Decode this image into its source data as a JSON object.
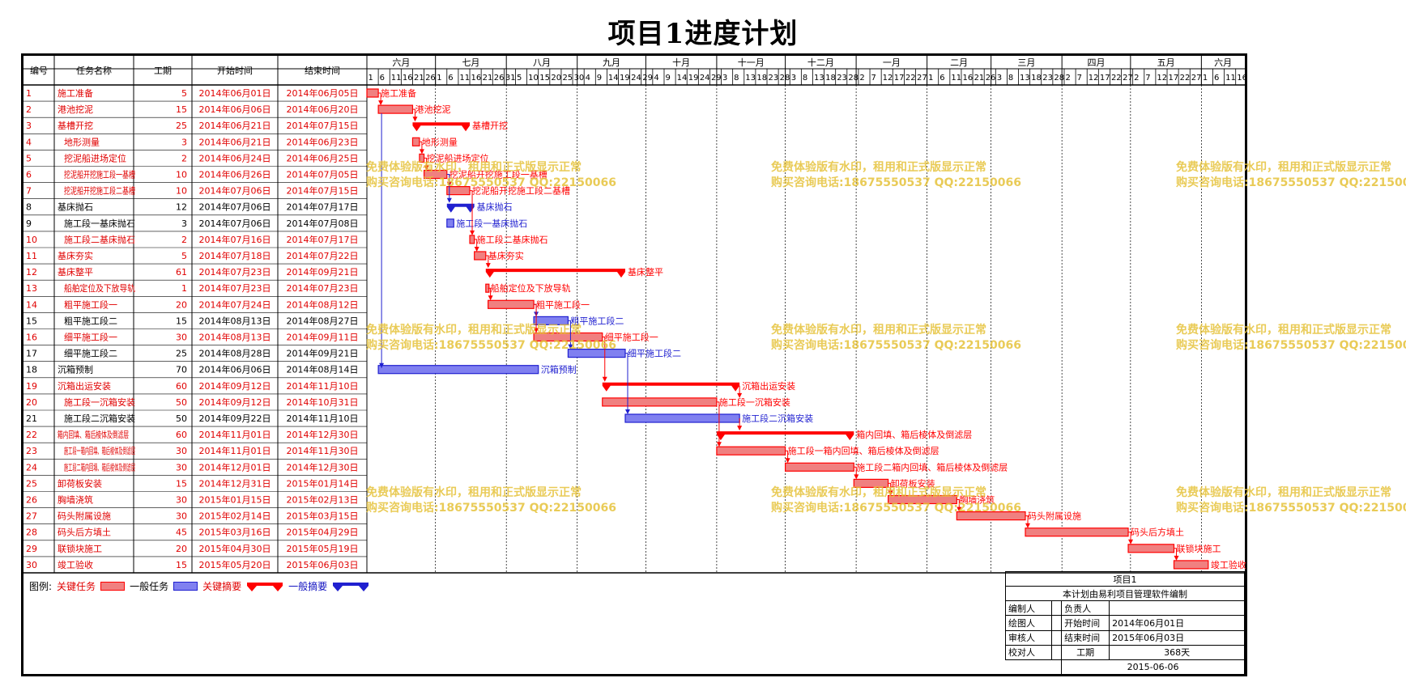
{
  "title": "项目1进度计划",
  "table_headers": [
    "编号",
    "任务名称",
    "工期",
    "开始时间",
    "结束时间"
  ],
  "watermark": {
    "line1": "免费体验版有水印，租用和正式版显示正常",
    "line2": "购买咨询电话:18675550537 QQ:22150066"
  },
  "legend": {
    "label": "图例:",
    "critical_task": "关键任务",
    "normal_task": "一般任务",
    "critical_summary": "关键摘要",
    "normal_summary": "一般摘要"
  },
  "info": {
    "project": "项目1",
    "note": "本计划由易利项目管理软件编制",
    "editor_label": "编制人",
    "owner_label": "负责人",
    "drawer_label": "绘图人",
    "start_label": "开始时间",
    "start_value": "2014年06月01日",
    "reviewer_label": "审核人",
    "end_label": "结束时间",
    "end_value": "2015年06月03日",
    "checker_label": "校对人",
    "duration_label": "工期",
    "duration_value": "368天",
    "date": "2015-06-06"
  },
  "colors": {
    "critical": "#ff0000",
    "normal": "#2020d0",
    "critical_fill": "#f08080",
    "normal_fill": "#8080f0"
  },
  "chart_data": {
    "type": "gantt",
    "timeline_start": "2014-06-01",
    "timeline_end": "2015-06-20",
    "months": [
      {
        "label": "六月",
        "start": "2014-06-01",
        "ticks": [
          "1",
          "6",
          "11",
          "16",
          "21",
          "26"
        ]
      },
      {
        "label": "七月",
        "start": "2014-07-01",
        "ticks": [
          "1",
          "6",
          "11",
          "16",
          "21",
          "26",
          "31"
        ]
      },
      {
        "label": "八月",
        "start": "2014-08-01",
        "ticks": [
          "5",
          "10",
          "15",
          "20",
          "25",
          "30"
        ]
      },
      {
        "label": "九月",
        "start": "2014-09-01",
        "ticks": [
          "4",
          "9",
          "14",
          "19",
          "24",
          "29"
        ]
      },
      {
        "label": "十月",
        "start": "2014-10-01",
        "ticks": [
          "4",
          "9",
          "14",
          "19",
          "24",
          "29"
        ]
      },
      {
        "label": "十一月",
        "start": "2014-11-01",
        "ticks": [
          "3",
          "8",
          "13",
          "18",
          "23",
          "28"
        ]
      },
      {
        "label": "十二月",
        "start": "2014-12-01",
        "ticks": [
          "3",
          "8",
          "13",
          "18",
          "23",
          "28"
        ]
      },
      {
        "label": "一月",
        "start": "2015-01-01",
        "ticks": [
          "2",
          "7",
          "12",
          "17",
          "22",
          "27"
        ]
      },
      {
        "label": "二月",
        "start": "2015-02-01",
        "ticks": [
          "1",
          "6",
          "11",
          "16",
          "21",
          "26"
        ]
      },
      {
        "label": "三月",
        "start": "2015-03-01",
        "ticks": [
          "3",
          "8",
          "13",
          "18",
          "23",
          "28"
        ]
      },
      {
        "label": "四月",
        "start": "2015-04-01",
        "ticks": [
          "2",
          "7",
          "12",
          "17",
          "22",
          "27"
        ]
      },
      {
        "label": "五月",
        "start": "2015-05-01",
        "ticks": [
          "2",
          "7",
          "12",
          "17",
          "22",
          "27"
        ]
      },
      {
        "label": "六月",
        "start": "2015-06-01",
        "ticks": [
          "1",
          "6",
          "11",
          "16"
        ]
      }
    ],
    "tasks": [
      {
        "id": "1",
        "name": "施工准备",
        "dur": "5",
        "start": "2014年06月01日",
        "end": "2014年06月05日",
        "s": "2014-06-01",
        "e": "2014-06-05",
        "kind": "task",
        "critical": true,
        "indent": 0,
        "bar_label": "施工准备"
      },
      {
        "id": "2",
        "name": "港池挖泥",
        "dur": "15",
        "start": "2014年06月06日",
        "end": "2014年06月20日",
        "s": "2014-06-06",
        "e": "2014-06-20",
        "kind": "task",
        "critical": true,
        "indent": 0,
        "bar_label": "港池挖泥"
      },
      {
        "id": "3",
        "name": "基槽开挖",
        "dur": "25",
        "start": "2014年06月21日",
        "end": "2014年07月15日",
        "s": "2014-06-21",
        "e": "2014-07-15",
        "kind": "summary",
        "critical": true,
        "indent": 0,
        "bar_label": "基槽开挖"
      },
      {
        "id": "4",
        "name": "地形测量",
        "dur": "3",
        "start": "2014年06月21日",
        "end": "2014年06月23日",
        "s": "2014-06-21",
        "e": "2014-06-23",
        "kind": "task",
        "critical": true,
        "indent": 1,
        "bar_label": "地形测量"
      },
      {
        "id": "5",
        "name": "挖泥船进场定位",
        "dur": "2",
        "start": "2014年06月24日",
        "end": "2014年06月25日",
        "s": "2014-06-24",
        "e": "2014-06-25",
        "kind": "task",
        "critical": true,
        "indent": 1,
        "bar_label": "挖泥船进场定位"
      },
      {
        "id": "6",
        "name": "挖泥船开挖施工段一基槽",
        "dur": "10",
        "start": "2014年06月26日",
        "end": "2014年07月05日",
        "s": "2014-06-26",
        "e": "2014-07-05",
        "kind": "task",
        "critical": true,
        "indent": 1,
        "bar_label": "挖泥船开挖施工段一基槽"
      },
      {
        "id": "7",
        "name": "挖泥船开挖施工段二基槽",
        "dur": "10",
        "start": "2014年07月06日",
        "end": "2014年07月15日",
        "s": "2014-07-06",
        "e": "2014-07-15",
        "kind": "task",
        "critical": true,
        "indent": 1,
        "bar_label": "挖泥船开挖施工段二基槽"
      },
      {
        "id": "8",
        "name": "基床抛石",
        "dur": "12",
        "start": "2014年07月06日",
        "end": "2014年07月17日",
        "s": "2014-07-06",
        "e": "2014-07-17",
        "kind": "summary",
        "critical": false,
        "indent": 0,
        "bar_label": "基床抛石"
      },
      {
        "id": "9",
        "name": "施工段一基床抛石",
        "dur": "3",
        "start": "2014年07月06日",
        "end": "2014年07月08日",
        "s": "2014-07-06",
        "e": "2014-07-08",
        "kind": "task",
        "critical": false,
        "indent": 1,
        "bar_label": "施工段一基床抛石"
      },
      {
        "id": "10",
        "name": "施工段二基床抛石",
        "dur": "2",
        "start": "2014年07月16日",
        "end": "2014年07月17日",
        "s": "2014-07-16",
        "e": "2014-07-17",
        "kind": "task",
        "critical": true,
        "indent": 1,
        "bar_label": "施工段二基床抛石"
      },
      {
        "id": "11",
        "name": "基床夯实",
        "dur": "5",
        "start": "2014年07月18日",
        "end": "2014年07月22日",
        "s": "2014-07-18",
        "e": "2014-07-22",
        "kind": "task",
        "critical": true,
        "indent": 0,
        "bar_label": "基床夯实"
      },
      {
        "id": "12",
        "name": "基床整平",
        "dur": "61",
        "start": "2014年07月23日",
        "end": "2014年09月21日",
        "s": "2014-07-23",
        "e": "2014-09-21",
        "kind": "summary",
        "critical": true,
        "indent": 0,
        "bar_label": "基床整平"
      },
      {
        "id": "13",
        "name": "船舶定位及下放导轨",
        "dur": "1",
        "start": "2014年07月23日",
        "end": "2014年07月23日",
        "s": "2014-07-23",
        "e": "2014-07-23",
        "kind": "task",
        "critical": true,
        "indent": 1,
        "bar_label": "船舶定位及下放导轨"
      },
      {
        "id": "14",
        "name": "粗平施工段一",
        "dur": "20",
        "start": "2014年07月24日",
        "end": "2014年08月12日",
        "s": "2014-07-24",
        "e": "2014-08-12",
        "kind": "task",
        "critical": true,
        "indent": 1,
        "bar_label": "粗平施工段一"
      },
      {
        "id": "15",
        "name": "粗平施工段二",
        "dur": "15",
        "start": "2014年08月13日",
        "end": "2014年08月27日",
        "s": "2014-08-13",
        "e": "2014-08-27",
        "kind": "task",
        "critical": false,
        "indent": 1,
        "bar_label": "粗平施工段二"
      },
      {
        "id": "16",
        "name": "细平施工段一",
        "dur": "30",
        "start": "2014年08月13日",
        "end": "2014年09月11日",
        "s": "2014-08-13",
        "e": "2014-09-11",
        "kind": "task",
        "critical": true,
        "indent": 1,
        "bar_label": "细平施工段一"
      },
      {
        "id": "17",
        "name": "细平施工段二",
        "dur": "25",
        "start": "2014年08月28日",
        "end": "2014年09月21日",
        "s": "2014-08-28",
        "e": "2014-09-21",
        "kind": "task",
        "critical": false,
        "indent": 1,
        "bar_label": "细平施工段二"
      },
      {
        "id": "18",
        "name": "沉箱预制",
        "dur": "70",
        "start": "2014年06月06日",
        "end": "2014年08月14日",
        "s": "2014-06-06",
        "e": "2014-08-14",
        "kind": "task",
        "critical": false,
        "indent": 0,
        "bar_label": "沉箱预制"
      },
      {
        "id": "19",
        "name": "沉箱出运安装",
        "dur": "60",
        "start": "2014年09月12日",
        "end": "2014年11月10日",
        "s": "2014-09-12",
        "e": "2014-11-10",
        "kind": "summary",
        "critical": true,
        "indent": 0,
        "bar_label": "沉箱出运安装"
      },
      {
        "id": "20",
        "name": "施工段一沉箱安装",
        "dur": "50",
        "start": "2014年09月12日",
        "end": "2014年10月31日",
        "s": "2014-09-12",
        "e": "2014-10-31",
        "kind": "task",
        "critical": true,
        "indent": 1,
        "bar_label": "施工段一沉箱安装"
      },
      {
        "id": "21",
        "name": "施工段二沉箱安装",
        "dur": "50",
        "start": "2014年09月22日",
        "end": "2014年11月10日",
        "s": "2014-09-22",
        "e": "2014-11-10",
        "kind": "task",
        "critical": false,
        "indent": 1,
        "bar_label": "施工段二沉箱安装"
      },
      {
        "id": "22",
        "name": "箱内回填、箱后棱体及倒滤层",
        "dur": "60",
        "start": "2014年11月01日",
        "end": "2014年12月30日",
        "s": "2014-11-01",
        "e": "2014-12-30",
        "kind": "summary",
        "critical": true,
        "indent": 0,
        "bar_label": "箱内回填、箱后棱体及倒滤层"
      },
      {
        "id": "23",
        "name": "施工段一箱内回填、箱后棱体及倒滤层",
        "dur": "30",
        "start": "2014年11月01日",
        "end": "2014年11月30日",
        "s": "2014-11-01",
        "e": "2014-11-30",
        "kind": "task",
        "critical": true,
        "indent": 1,
        "bar_label": "施工段一箱内回填、箱后棱体及倒滤层"
      },
      {
        "id": "24",
        "name": "施工段二箱内回填、箱后棱体及倒滤层",
        "dur": "30",
        "start": "2014年12月01日",
        "end": "2014年12月30日",
        "s": "2014-12-01",
        "e": "2014-12-30",
        "kind": "task",
        "critical": true,
        "indent": 1,
        "bar_label": "施工段二箱内回填、箱后棱体及倒滤层"
      },
      {
        "id": "25",
        "name": "卸荷板安装",
        "dur": "15",
        "start": "2014年12月31日",
        "end": "2015年01月14日",
        "s": "2014-12-31",
        "e": "2015-01-14",
        "kind": "task",
        "critical": true,
        "indent": 0,
        "bar_label": "卸荷板安装"
      },
      {
        "id": "26",
        "name": "胸墙浇筑",
        "dur": "30",
        "start": "2015年01月15日",
        "end": "2015年02月13日",
        "s": "2015-01-15",
        "e": "2015-02-13",
        "kind": "task",
        "critical": true,
        "indent": 0,
        "bar_label": "胸墙浇筑"
      },
      {
        "id": "27",
        "name": "码头附属设施",
        "dur": "30",
        "start": "2015年02月14日",
        "end": "2015年03月15日",
        "s": "2015-02-14",
        "e": "2015-03-15",
        "kind": "task",
        "critical": true,
        "indent": 0,
        "bar_label": "码头附属设施"
      },
      {
        "id": "28",
        "name": "码头后方填土",
        "dur": "45",
        "start": "2015年03月16日",
        "end": "2015年04月29日",
        "s": "2015-03-16",
        "e": "2015-04-29",
        "kind": "task",
        "critical": true,
        "indent": 0,
        "bar_label": "码头后方填土"
      },
      {
        "id": "29",
        "name": "联锁块施工",
        "dur": "20",
        "start": "2015年04月30日",
        "end": "2015年05月19日",
        "s": "2015-04-30",
        "e": "2015-05-19",
        "kind": "task",
        "critical": true,
        "indent": 0,
        "bar_label": "联锁块施工"
      },
      {
        "id": "30",
        "name": "竣工验收",
        "dur": "15",
        "start": "2015年05月20日",
        "end": "2015年06月03日",
        "s": "2015-05-20",
        "e": "2015-06-03",
        "kind": "task",
        "critical": true,
        "indent": 0,
        "bar_label": "竣工验收"
      }
    ]
  }
}
